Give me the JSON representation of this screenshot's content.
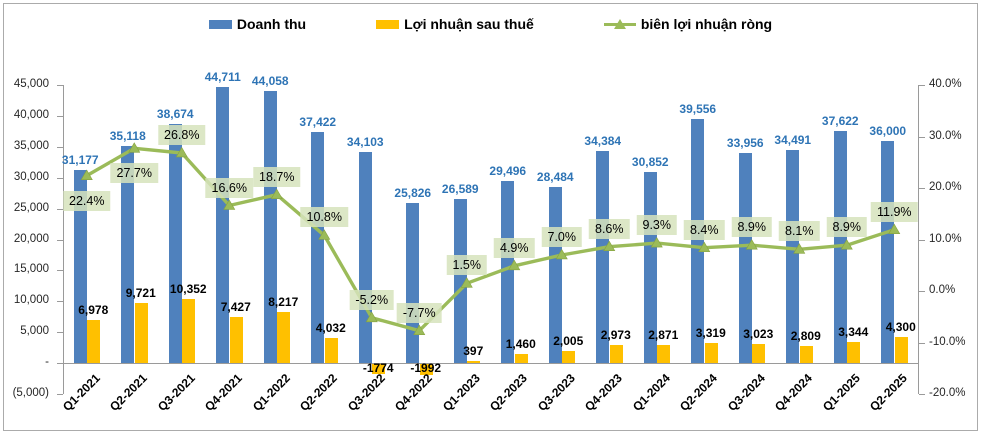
{
  "legend": {
    "items": [
      {
        "label": "Doanh thu",
        "marker": "square",
        "color": "#4f81bd"
      },
      {
        "label": "Lợi nhuận sau thuế",
        "marker": "square",
        "color": "#ffc000"
      },
      {
        "label": "biên lợi nhuận ròng",
        "marker": "line-triangle",
        "color": "#9bbb59"
      }
    ]
  },
  "chart_data": {
    "type": "combo-bar-line",
    "title": "",
    "legend_position": "top",
    "grid": false,
    "categories": [
      "Q1-2021",
      "Q2-2021",
      "Q3-2021",
      "Q4-2021",
      "Q1-2022",
      "Q2-2022",
      "Q3-2022",
      "Q4-2022",
      "Q1-2023",
      "Q2-2023",
      "Q3-2023",
      "Q4-2023",
      "Q1-2024",
      "Q2-2024",
      "Q3-2024",
      "Q4-2024",
      "Q1-2025",
      "Q2-2025"
    ],
    "series": [
      {
        "name": "Doanh thu",
        "type": "bar",
        "axis": "left",
        "color": "#4f81bd",
        "label_color": "#2e74b5",
        "values": [
          31177,
          35118,
          38674,
          44711,
          44058,
          37422,
          34103,
          25826,
          26589,
          29496,
          28484,
          34384,
          30852,
          39556,
          33956,
          34491,
          37622,
          36000
        ],
        "labels": [
          "31,177",
          "35,118",
          "38,674",
          "44,711",
          "44,058",
          "37,422",
          "34,103",
          "25,826",
          "26,589",
          "29,496",
          "28,484",
          "34,384",
          "30,852",
          "39,556",
          "33,956",
          "34,491",
          "37,622",
          "36,000"
        ]
      },
      {
        "name": "Lợi nhuận sau thuế",
        "type": "bar",
        "axis": "left",
        "color": "#ffc000",
        "label_color": "#000000",
        "values": [
          6978,
          9721,
          10352,
          7427,
          8217,
          4032,
          -1774,
          -1992,
          397,
          1460,
          2005,
          2973,
          2871,
          3319,
          3023,
          2809,
          3344,
          4300
        ],
        "labels": [
          "6,978",
          "9,721",
          "10,352",
          "7,427",
          "8,217",
          "4,032",
          "-1774",
          "-1992",
          "397",
          "1,460",
          "2,005",
          "2,973",
          "2,871",
          "3,319",
          "3,023",
          "2,809",
          "3,344",
          "4,300"
        ]
      },
      {
        "name": "biên lợi nhuận ròng",
        "type": "line",
        "axis": "right",
        "color": "#9bbb59",
        "marker": "triangle",
        "label_bg": "#d6e3bc",
        "values": [
          22.4,
          27.7,
          26.8,
          16.6,
          18.7,
          10.8,
          -5.2,
          -7.7,
          1.5,
          4.9,
          7.0,
          8.6,
          9.3,
          8.4,
          8.9,
          8.1,
          8.9,
          11.9
        ],
        "labels": [
          "22.4%",
          "27.7%",
          "26.8%",
          "16.6%",
          "18.7%",
          "10.8%",
          "-5.2%",
          "-7.7%",
          "1.5%",
          "4.9%",
          "7.0%",
          "8.6%",
          "9.3%",
          "8.4%",
          "8.9%",
          "8.1%",
          "8.9%",
          "11.9%"
        ],
        "label_placement": [
          "below",
          "below",
          "above",
          "above",
          "above",
          "above",
          "above",
          "above",
          "above",
          "above",
          "above",
          "above",
          "above",
          "above",
          "above",
          "above",
          "above",
          "above"
        ]
      }
    ],
    "left_axis": {
      "min": -5000,
      "max": 45000,
      "tick_step": 5000,
      "tick_labels": [
        "(5,000)",
        "-",
        "5,000",
        "10,000",
        "15,000",
        "20,000",
        "25,000",
        "30,000",
        "35,000",
        "40,000",
        "45,000"
      ]
    },
    "right_axis": {
      "min": -20,
      "max": 40,
      "tick_step": 10,
      "tick_labels": [
        "-20.0%",
        "-10.0%",
        "0.0%",
        "10.0%",
        "20.0%",
        "30.0%",
        "40.0%"
      ]
    }
  }
}
